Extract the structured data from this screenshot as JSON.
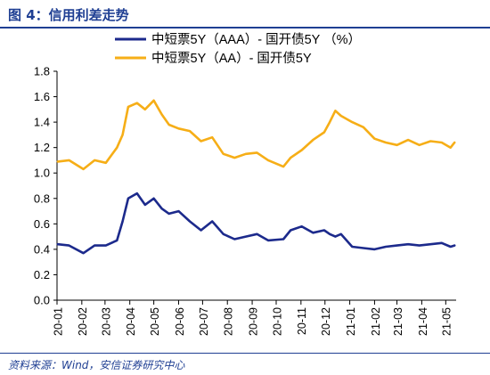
{
  "figure": {
    "title": "图 4：信用利差走势",
    "source": "资料来源：Wind，安信证券研究中心"
  },
  "colors": {
    "brand": "#1f3f93",
    "series_aaa": "#1c2a8c",
    "series_aa": "#f6ae17"
  },
  "chart_data": {
    "type": "line",
    "title": "",
    "xlabel": "",
    "ylabel": "",
    "ylim": [
      0,
      1.8
    ],
    "yticks": [
      "0.0",
      "0.2",
      "0.4",
      "0.6",
      "0.8",
      "1.0",
      "1.2",
      "1.4",
      "1.6",
      "1.8"
    ],
    "grid": false,
    "legend_position": "top-center",
    "x_tick_labels": [
      "20-01",
      "20-02",
      "20-03",
      "20-04",
      "20-05",
      "20-06",
      "20-07",
      "20-08",
      "20-09",
      "20-10",
      "20-11",
      "20-12",
      "21-01",
      "21-02",
      "21-03",
      "21-04",
      "21-05"
    ],
    "x": [
      "2020-01-02",
      "2020-01-16",
      "2020-02-03",
      "2020-02-17",
      "2020-03-02",
      "2020-03-16",
      "2020-03-23",
      "2020-03-30",
      "2020-04-10",
      "2020-04-20",
      "2020-05-01",
      "2020-05-11",
      "2020-05-20",
      "2020-06-01",
      "2020-06-15",
      "2020-06-29",
      "2020-07-13",
      "2020-07-27",
      "2020-08-10",
      "2020-08-24",
      "2020-09-07",
      "2020-09-21",
      "2020-10-10",
      "2020-10-19",
      "2020-11-02",
      "2020-11-16",
      "2020-11-30",
      "2020-12-07",
      "2020-12-14",
      "2020-12-21",
      "2021-01-04",
      "2021-01-18",
      "2021-02-01",
      "2021-02-15",
      "2021-03-01",
      "2021-03-15",
      "2021-03-29",
      "2021-04-12",
      "2021-04-26",
      "2021-05-07",
      "2021-05-12"
    ],
    "series": [
      {
        "name": "中短票5Y（AAA）- 国开债5Y （%）",
        "values": [
          0.44,
          0.43,
          0.37,
          0.43,
          0.43,
          0.47,
          0.62,
          0.8,
          0.84,
          0.75,
          0.8,
          0.72,
          0.68,
          0.7,
          0.62,
          0.55,
          0.62,
          0.52,
          0.48,
          0.5,
          0.52,
          0.47,
          0.48,
          0.55,
          0.58,
          0.53,
          0.55,
          0.52,
          0.5,
          0.52,
          0.42,
          0.41,
          0.4,
          0.42,
          0.43,
          0.44,
          0.43,
          0.44,
          0.45,
          0.42,
          0.43
        ]
      },
      {
        "name": "中短票5Y（AA）- 国开债5Y",
        "values": [
          1.09,
          1.1,
          1.03,
          1.1,
          1.08,
          1.2,
          1.3,
          1.52,
          1.55,
          1.5,
          1.57,
          1.46,
          1.38,
          1.35,
          1.33,
          1.25,
          1.28,
          1.15,
          1.12,
          1.15,
          1.16,
          1.1,
          1.05,
          1.12,
          1.18,
          1.26,
          1.32,
          1.4,
          1.49,
          1.45,
          1.4,
          1.36,
          1.27,
          1.24,
          1.22,
          1.26,
          1.22,
          1.25,
          1.24,
          1.2,
          1.24
        ]
      }
    ]
  }
}
